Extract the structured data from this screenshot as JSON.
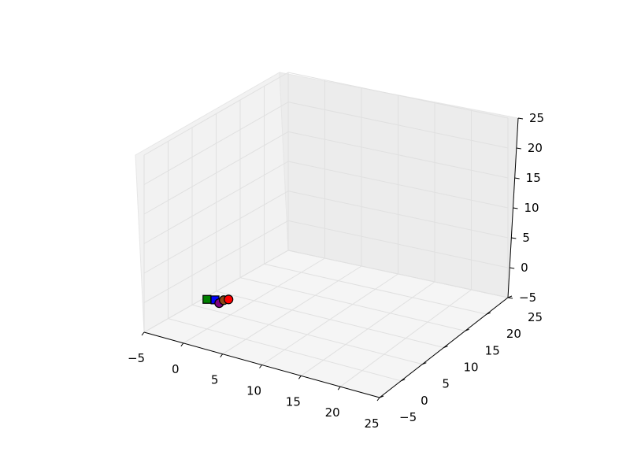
{
  "chart_data": {
    "type": "scatter",
    "projection": "3d",
    "title": "",
    "xlabel": "",
    "ylabel": "",
    "zlabel": "",
    "xlim": [
      -5,
      25
    ],
    "ylim": [
      -5,
      25
    ],
    "zlim": [
      -5,
      25
    ],
    "xticks": [
      "−5",
      "0",
      "5",
      "10",
      "15",
      "20",
      "25"
    ],
    "yticks": [
      "−5",
      "0",
      "5",
      "10",
      "15",
      "20",
      "25"
    ],
    "zticks": [
      "−5",
      "0",
      "5",
      "10",
      "15",
      "20",
      "25"
    ],
    "grid": true,
    "points": [
      {
        "x": 0.0,
        "y": 0.0,
        "z": 0.0,
        "color": "#008000",
        "marker": "square"
      },
      {
        "x": 0.8,
        "y": 0.4,
        "z": 0.0,
        "color": "#0000ff",
        "marker": "square"
      },
      {
        "x": 1.4,
        "y": 0.3,
        "z": -0.3,
        "color": "#800080",
        "marker": "circle"
      },
      {
        "x": 1.8,
        "y": 0.6,
        "z": 0.2,
        "color": "#8b4513",
        "marker": "circle"
      },
      {
        "x": 2.3,
        "y": 0.8,
        "z": 0.4,
        "color": "#ff0000",
        "marker": "circle"
      }
    ]
  }
}
